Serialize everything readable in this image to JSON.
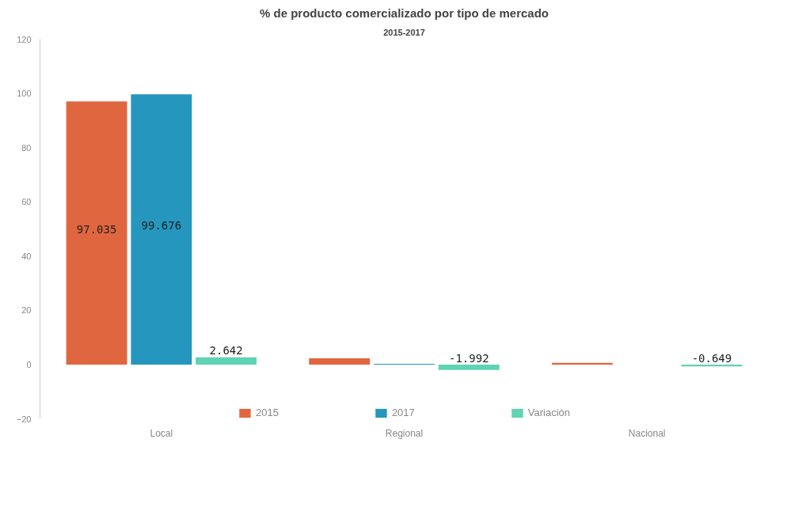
{
  "chart_data": {
    "type": "bar",
    "title": "% de producto comercializado por tipo de mercado",
    "subtitle": "2015-2017",
    "categories": [
      "Local",
      "Regional",
      "Nacional"
    ],
    "series": [
      {
        "name": "2015",
        "color": "#e0663f",
        "values": [
          97.035,
          2.3,
          0.6
        ],
        "value_labels": [
          "97.035",
          null,
          null
        ]
      },
      {
        "name": "2017",
        "color": "#2596be",
        "values": [
          99.676,
          0.3,
          0
        ],
        "value_labels": [
          "99.676",
          null,
          null
        ]
      },
      {
        "name": "Variación",
        "color": "#5fd3b3",
        "values": [
          2.642,
          -1.992,
          -0.649
        ],
        "value_labels": [
          "2.642",
          "-1.992",
          "-0.649"
        ]
      }
    ],
    "ylim": [
      -20,
      120
    ],
    "yticks": [
      -20,
      0,
      20,
      40,
      60,
      80,
      100,
      120
    ],
    "grid": false,
    "legend": "bottom"
  }
}
